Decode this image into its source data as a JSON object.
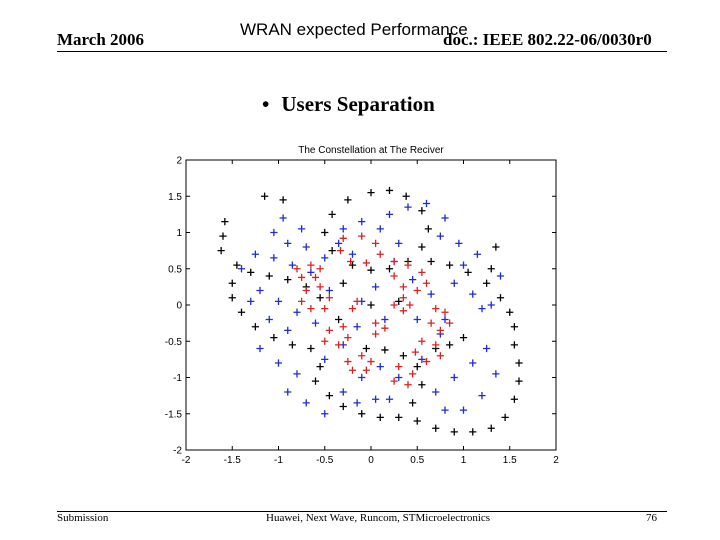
{
  "header": {
    "date": "March 2006",
    "title": "WRAN expected Performance",
    "doc_id": "doc.: IEEE 802.22-06/0030r0"
  },
  "bullet": {
    "symbol": "•",
    "text": "Users Separation"
  },
  "footer": {
    "left": "Submission",
    "center": "Huawei, Next Wave, Runcom, STMicroelectronics",
    "page": "76"
  },
  "chart_data": {
    "type": "scatter",
    "title": "The Constellation at The Reciver",
    "xlabel": "",
    "ylabel": "",
    "xlim": [
      -2,
      2
    ],
    "ylim": [
      -2,
      2
    ],
    "x_ticks": [
      "-2",
      "-1.5",
      "-1",
      "-0.5",
      "0",
      "0.5",
      "1",
      "1.5",
      "2"
    ],
    "y_ticks": [
      "2",
      "1.5",
      "1",
      "0.5",
      "0",
      "-0.5",
      "-1",
      "-1.5",
      "-2"
    ],
    "grid": false,
    "marker": "+",
    "series": [
      {
        "color": "#000000",
        "points": [
          [
            0.0,
            1.55
          ],
          [
            0.2,
            1.58
          ],
          [
            0.38,
            1.5
          ],
          [
            0.55,
            1.3
          ],
          [
            0.62,
            1.05
          ],
          [
            0.55,
            0.8
          ],
          [
            0.4,
            0.6
          ],
          [
            0.2,
            0.5
          ],
          [
            0.0,
            0.48
          ],
          [
            -0.2,
            0.55
          ],
          [
            -0.42,
            0.75
          ],
          [
            -0.5,
            1.0
          ],
          [
            -0.42,
            1.25
          ],
          [
            -0.25,
            1.45
          ],
          [
            -1.62,
            0.75
          ],
          [
            -1.6,
            0.95
          ],
          [
            -1.58,
            1.15
          ],
          [
            -1.45,
            0.55
          ],
          [
            -1.3,
            0.45
          ],
          [
            -1.1,
            0.4
          ],
          [
            -0.9,
            0.35
          ],
          [
            -0.7,
            0.25
          ],
          [
            -0.55,
            0.1
          ],
          [
            -1.5,
            0.3
          ],
          [
            -1.5,
            0.1
          ],
          [
            -1.4,
            -0.1
          ],
          [
            -1.25,
            -0.3
          ],
          [
            -1.05,
            -0.45
          ],
          [
            -0.85,
            -0.55
          ],
          [
            -0.65,
            -0.6
          ],
          [
            1.55,
            -0.3
          ],
          [
            1.5,
            -0.1
          ],
          [
            1.4,
            0.1
          ],
          [
            1.25,
            0.3
          ],
          [
            1.05,
            0.45
          ],
          [
            0.85,
            0.55
          ],
          [
            0.65,
            0.6
          ],
          [
            1.55,
            -0.55
          ],
          [
            1.6,
            -0.8
          ],
          [
            1.6,
            -1.05
          ],
          [
            1.55,
            -1.3
          ],
          [
            1.45,
            -1.55
          ],
          [
            1.3,
            -1.7
          ],
          [
            1.1,
            -1.75
          ],
          [
            0.9,
            -1.75
          ],
          [
            0.7,
            -1.7
          ],
          [
            0.5,
            -1.6
          ],
          [
            0.3,
            -1.55
          ],
          [
            0.1,
            -1.55
          ],
          [
            -0.1,
            -1.5
          ],
          [
            -0.3,
            -1.4
          ],
          [
            -0.45,
            -1.25
          ],
          [
            0.45,
            -1.35
          ],
          [
            0.55,
            -1.1
          ],
          [
            0.5,
            -0.85
          ],
          [
            0.35,
            -0.7
          ],
          [
            0.15,
            -0.62
          ],
          [
            -0.05,
            -0.6
          ],
          [
            0.0,
            0.0
          ],
          [
            1.0,
            -0.45
          ],
          [
            0.85,
            -0.55
          ],
          [
            0.7,
            -0.6
          ],
          [
            1.35,
            0.8
          ],
          [
            1.3,
            0.5
          ],
          [
            -0.95,
            1.45
          ],
          [
            -1.15,
            1.5
          ],
          [
            -0.35,
            -0.2
          ],
          [
            0.3,
            0.05
          ],
          [
            -0.3,
            0.3
          ],
          [
            -0.55,
            -0.85
          ],
          [
            -0.6,
            -1.05
          ]
        ]
      },
      {
        "color": "#1f2bd6",
        "points": [
          [
            -0.75,
            1.05
          ],
          [
            -0.9,
            0.85
          ],
          [
            -1.05,
            0.65
          ],
          [
            -0.7,
            0.8
          ],
          [
            -0.5,
            0.65
          ],
          [
            -0.85,
            0.55
          ],
          [
            -1.2,
            0.2
          ],
          [
            -1.0,
            0.05
          ],
          [
            -0.8,
            -0.1
          ],
          [
            -0.6,
            -0.25
          ],
          [
            -1.1,
            -0.2
          ],
          [
            -0.9,
            -0.35
          ],
          [
            -1.3,
            0.05
          ],
          [
            -1.2,
            -0.6
          ],
          [
            -1.0,
            -0.8
          ],
          [
            -0.8,
            -0.95
          ],
          [
            -0.9,
            -1.2
          ],
          [
            -0.7,
            -1.35
          ],
          [
            -0.5,
            -1.5
          ],
          [
            -0.3,
            -1.2
          ],
          [
            -0.1,
            -1.0
          ],
          [
            0.1,
            -0.85
          ],
          [
            0.3,
            -1.0
          ],
          [
            0.2,
            -1.3
          ],
          [
            0.7,
            -1.2
          ],
          [
            0.9,
            -1.0
          ],
          [
            1.1,
            -0.8
          ],
          [
            1.25,
            -0.6
          ],
          [
            1.35,
            -0.95
          ],
          [
            1.2,
            -1.25
          ],
          [
            1.0,
            -1.45
          ],
          [
            0.8,
            -1.45
          ],
          [
            0.9,
            0.3
          ],
          [
            1.1,
            0.15
          ],
          [
            1.2,
            -0.05
          ],
          [
            1.15,
            0.7
          ],
          [
            0.95,
            0.85
          ],
          [
            0.75,
            0.95
          ],
          [
            0.8,
            1.2
          ],
          [
            0.6,
            1.4
          ],
          [
            0.4,
            1.35
          ],
          [
            0.2,
            1.25
          ],
          [
            0.1,
            1.05
          ],
          [
            -0.1,
            1.15
          ],
          [
            -0.3,
            1.05
          ],
          [
            -0.35,
            0.85
          ],
          [
            0.3,
            0.85
          ],
          [
            0.05,
            0.25
          ],
          [
            -0.1,
            0.05
          ],
          [
            0.15,
            -0.2
          ],
          [
            -0.15,
            -0.3
          ],
          [
            0.5,
            -0.2
          ],
          [
            0.45,
            0.35
          ],
          [
            -0.45,
            0.2
          ],
          [
            -0.65,
            0.45
          ],
          [
            1.4,
            0.4
          ],
          [
            1.3,
            0.0
          ],
          [
            -1.4,
            0.5
          ],
          [
            -1.25,
            0.7
          ],
          [
            -1.05,
            1.0
          ],
          [
            -0.95,
            1.2
          ],
          [
            0.65,
            0.15
          ],
          [
            0.8,
            -0.2
          ],
          [
            -0.3,
            -0.55
          ],
          [
            -0.5,
            -0.75
          ],
          [
            0.05,
            -1.3
          ],
          [
            -0.15,
            -1.35
          ],
          [
            0.55,
            -0.75
          ],
          [
            0.75,
            -0.4
          ],
          [
            0.25,
            0.6
          ],
          [
            -0.2,
            0.7
          ],
          [
            1.0,
            0.55
          ]
        ]
      },
      {
        "color": "#e02020",
        "points": [
          [
            -0.3,
            0.92
          ],
          [
            -0.1,
            0.95
          ],
          [
            0.05,
            0.85
          ],
          [
            0.1,
            0.7
          ],
          [
            -0.05,
            0.58
          ],
          [
            -0.22,
            0.6
          ],
          [
            -0.33,
            0.75
          ],
          [
            0.25,
            0.6
          ],
          [
            0.4,
            0.55
          ],
          [
            0.55,
            0.45
          ],
          [
            0.6,
            0.3
          ],
          [
            0.5,
            0.2
          ],
          [
            0.35,
            0.25
          ],
          [
            0.25,
            0.4
          ],
          [
            -0.7,
            0.2
          ],
          [
            -0.55,
            0.25
          ],
          [
            -0.45,
            0.1
          ],
          [
            -0.5,
            -0.05
          ],
          [
            -0.65,
            -0.05
          ],
          [
            -0.75,
            0.05
          ],
          [
            -0.8,
            0.5
          ],
          [
            -0.65,
            0.55
          ],
          [
            -0.55,
            0.5
          ],
          [
            -0.6,
            0.38
          ],
          [
            -0.75,
            0.38
          ],
          [
            0.25,
            0.0
          ],
          [
            0.35,
            0.1
          ],
          [
            0.42,
            0.0
          ],
          [
            0.35,
            -0.08
          ],
          [
            -0.15,
            0.05
          ],
          [
            -0.2,
            -0.05
          ],
          [
            -0.45,
            -0.35
          ],
          [
            -0.3,
            -0.3
          ],
          [
            -0.25,
            -0.45
          ],
          [
            -0.35,
            -0.55
          ],
          [
            -0.5,
            -0.5
          ],
          [
            0.05,
            -0.25
          ],
          [
            0.15,
            -0.32
          ],
          [
            0.05,
            -0.4
          ],
          [
            0.7,
            -0.05
          ],
          [
            0.8,
            -0.1
          ],
          [
            0.85,
            -0.25
          ],
          [
            0.75,
            -0.35
          ],
          [
            0.65,
            -0.25
          ],
          [
            0.55,
            -0.5
          ],
          [
            0.7,
            -0.55
          ],
          [
            0.75,
            -0.7
          ],
          [
            0.6,
            -0.78
          ],
          [
            0.48,
            -0.65
          ],
          [
            -0.1,
            -0.7
          ],
          [
            0.0,
            -0.78
          ],
          [
            -0.05,
            -0.9
          ],
          [
            -0.2,
            -0.9
          ],
          [
            -0.25,
            -0.78
          ],
          [
            0.3,
            -0.85
          ],
          [
            0.45,
            -0.95
          ],
          [
            0.4,
            -1.1
          ],
          [
            0.25,
            -1.05
          ]
        ]
      }
    ]
  }
}
